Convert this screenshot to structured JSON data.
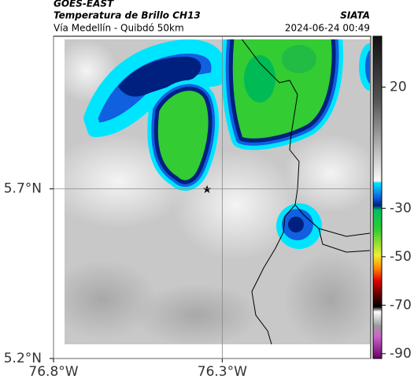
{
  "chart_data": {
    "type": "map",
    "satellite": "GOES-EAST",
    "title": "Temperatura de Brillo CH13",
    "subtitle": "Vía Medellín - Quibdó 50km",
    "source": "SIATA",
    "timestamp": "2024-06-24 00:49",
    "xlim": [
      -76.8,
      -75.86
    ],
    "ylim": [
      5.2,
      6.15
    ],
    "xticks": [
      {
        "value": -76.8,
        "label": "76.8°W"
      },
      {
        "value": -76.3,
        "label": "76.3°W"
      }
    ],
    "yticks": [
      {
        "value": 5.7,
        "label": "5.7°N"
      },
      {
        "value": 5.2,
        "label": "5.2°N"
      }
    ],
    "grid": true,
    "colorbar": {
      "lim": [
        41,
        -92
      ],
      "ticks": [
        20,
        -30,
        -50,
        -70,
        -90
      ]
    }
  }
}
